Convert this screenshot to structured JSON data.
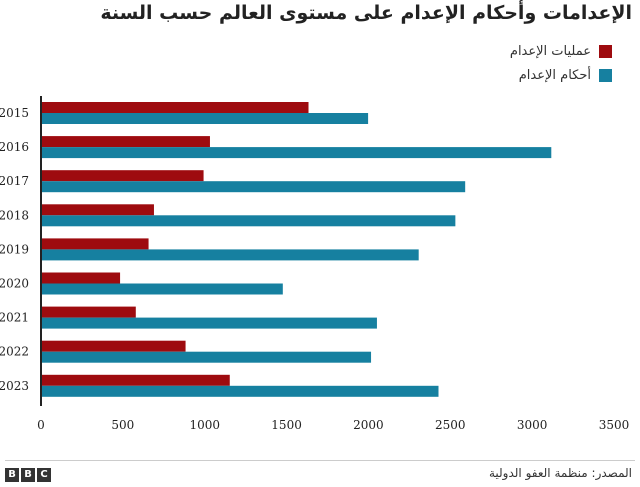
{
  "chart_data": {
    "type": "bar",
    "orientation": "horizontal",
    "title": "الإعدامات وأحكام الإعدام على مستوى العالم حسب السنة",
    "categories": [
      "2015",
      "2016",
      "2017",
      "2018",
      "2019",
      "2020",
      "2021",
      "2022",
      "2023"
    ],
    "series": [
      {
        "name": "عمليات الإعدام",
        "color": "#9e0b0f",
        "values": [
          1634,
          1032,
          993,
          690,
          657,
          483,
          579,
          883,
          1153
        ]
      },
      {
        "name": "أحكام الإعدام",
        "color": "#1680a0",
        "values": [
          1998,
          3117,
          2591,
          2531,
          2307,
          1477,
          2052,
          2016,
          2428
        ]
      }
    ],
    "xlim": [
      0,
      3500
    ],
    "xticks": [
      "0",
      "500",
      "1000",
      "1500",
      "2000",
      "2500",
      "3000",
      "3500"
    ],
    "grid": false,
    "legend": "top-right"
  },
  "footer": {
    "source": "المصدر: منظمة العفو الدولية",
    "logo": [
      "B",
      "B",
      "C"
    ]
  }
}
